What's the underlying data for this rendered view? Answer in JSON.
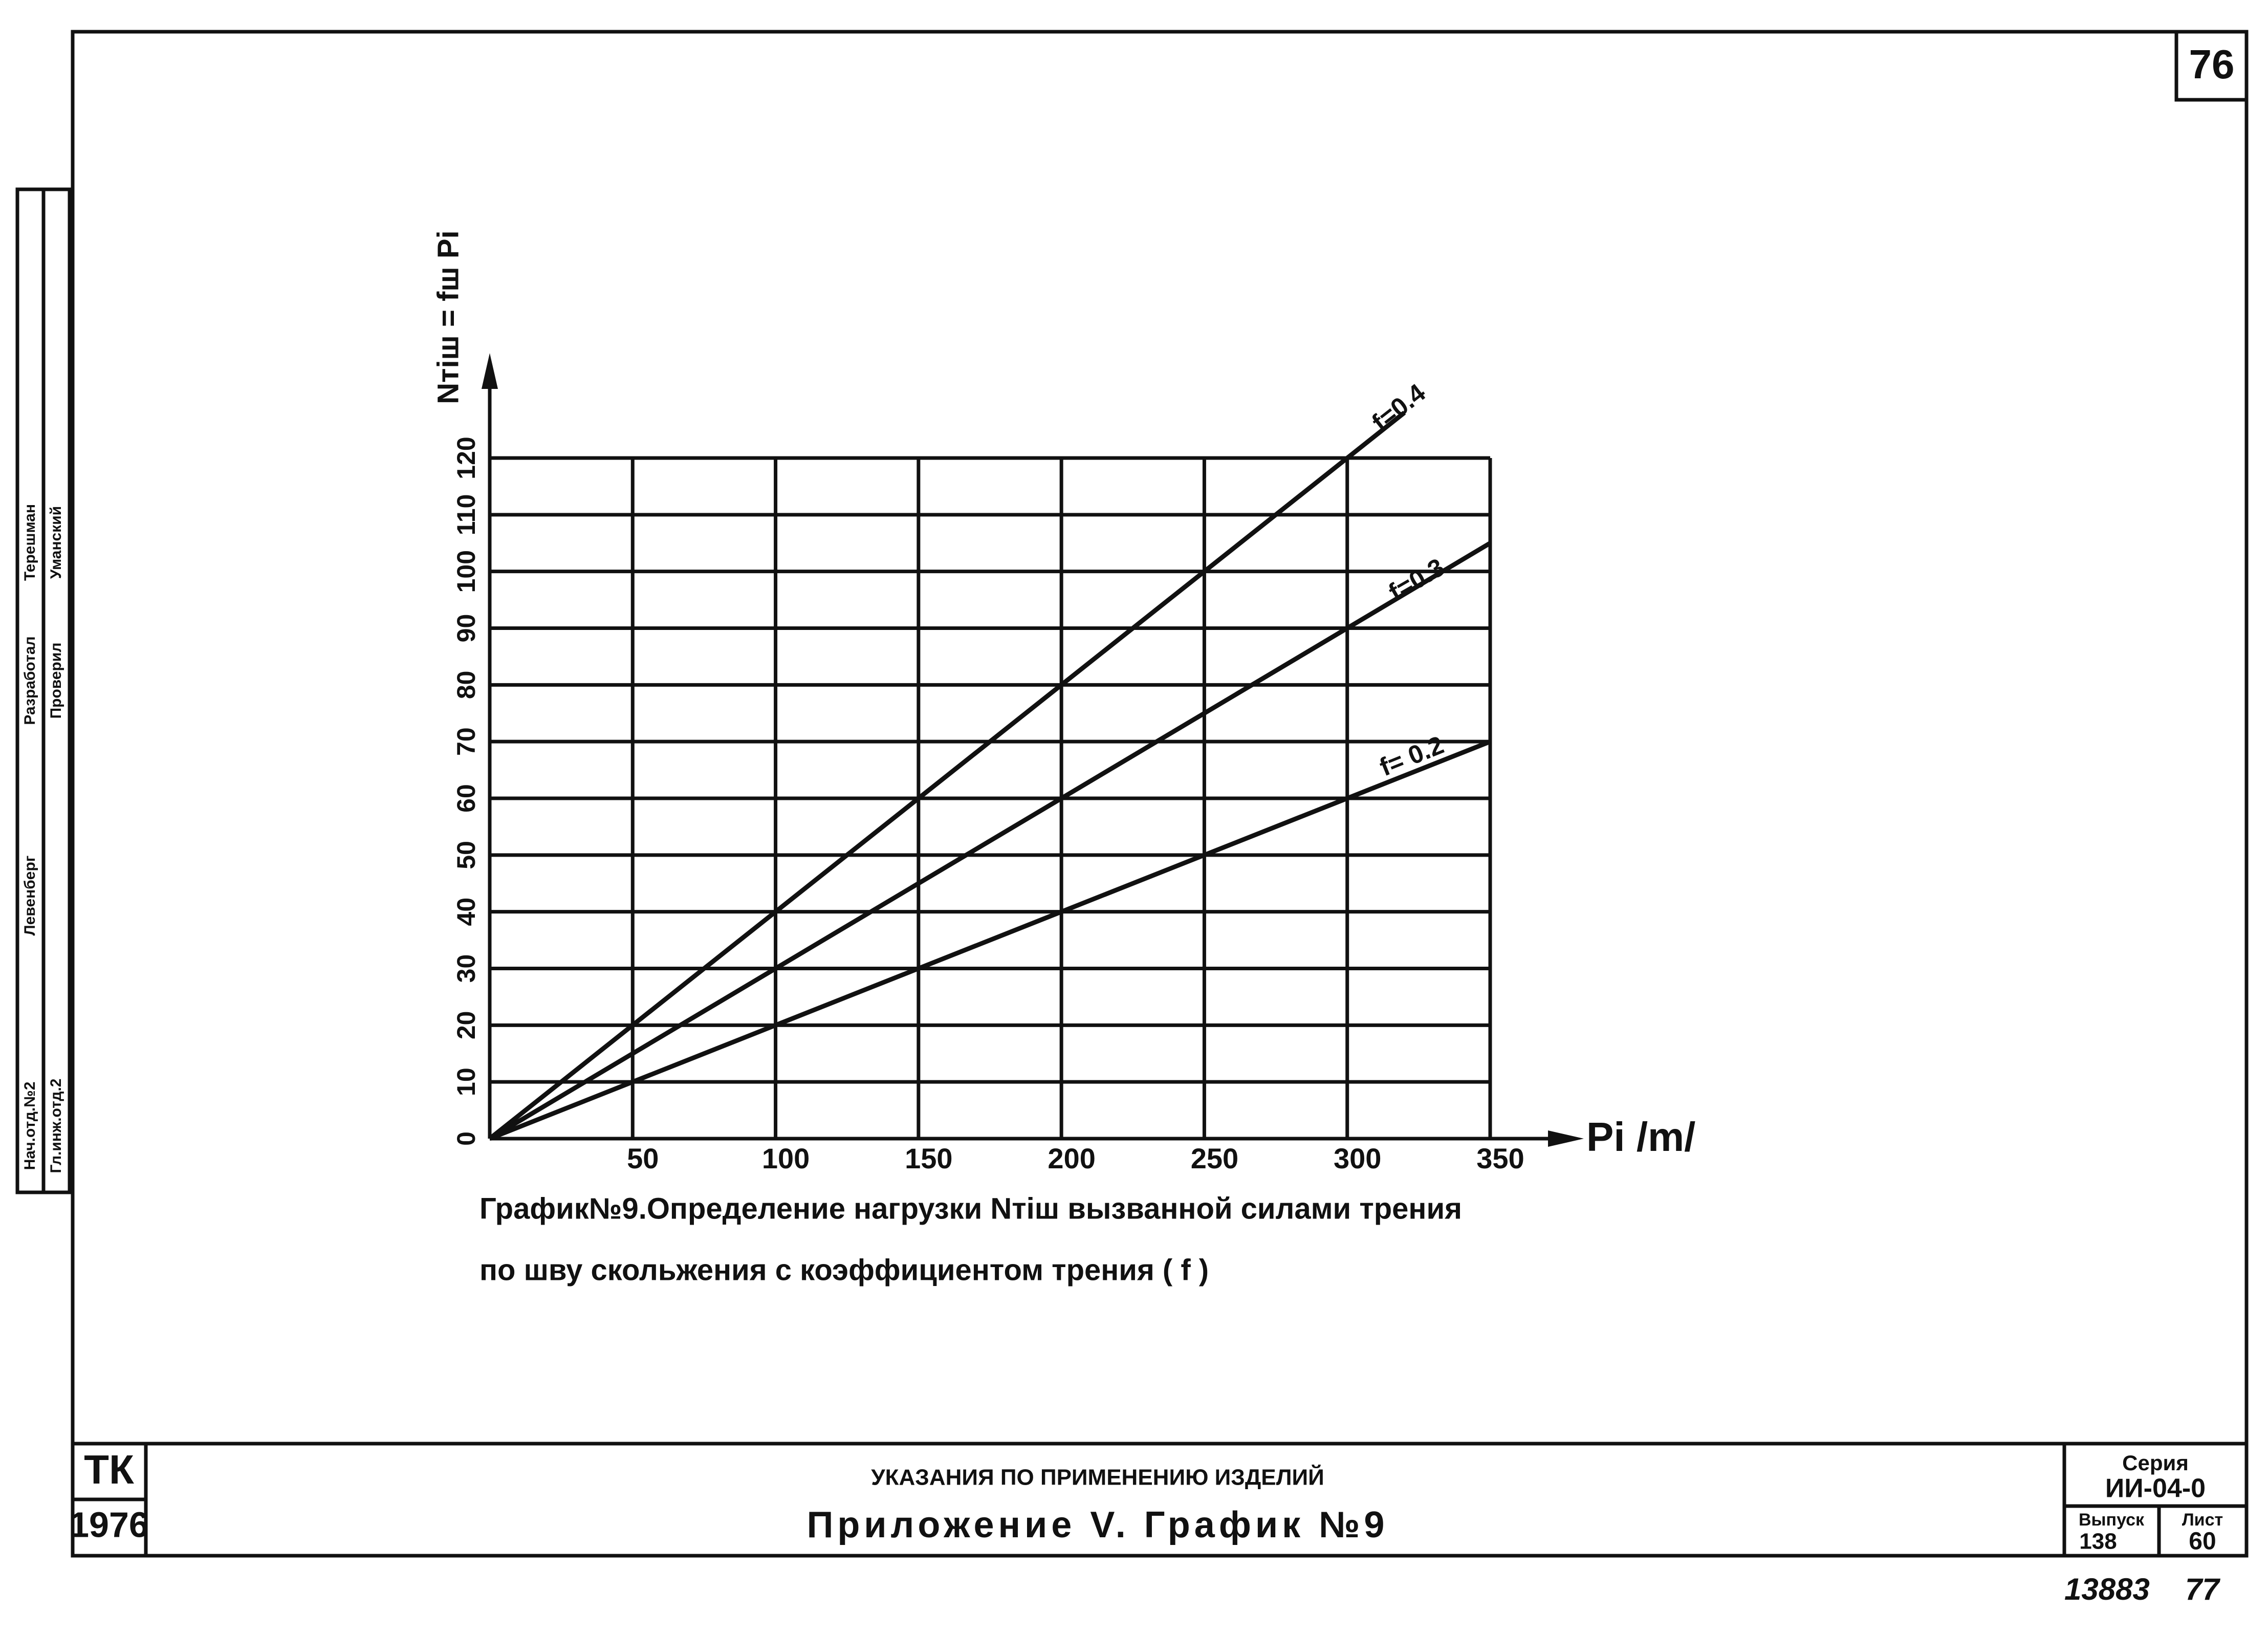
{
  "page_number": "76",
  "chart_data": {
    "type": "line",
    "y_axis_label": "Nтiш = fш Pi",
    "x_axis_label": "Pi /m/",
    "xlim": [
      0,
      350
    ],
    "xticks": [
      50,
      100,
      150,
      200,
      250,
      300,
      350
    ],
    "ylim": [
      0,
      120
    ],
    "yticks": [
      0,
      10,
      20,
      30,
      40,
      50,
      60,
      70,
      80,
      90,
      100,
      110,
      120
    ],
    "grid": true,
    "series": [
      {
        "name": "f=0.4",
        "color": "#111111",
        "x": [
          0,
          320
        ],
        "values": [
          0,
          128
        ]
      },
      {
        "name": "f=0.3",
        "color": "#111111",
        "x": [
          0,
          350
        ],
        "values": [
          0,
          105
        ]
      },
      {
        "name": "f= 0.2",
        "color": "#111111",
        "x": [
          0,
          350
        ],
        "values": [
          0,
          70
        ]
      }
    ],
    "caption": [
      "График№9.Определение нагрузки Nтiш вызванной силами трения",
      "по шву скольжения с коэффициентом трения ( f )"
    ]
  },
  "stamp": {
    "rows": [
      [
        "Нач.отд.№2",
        "Левенберг",
        "Разработал",
        "Терешман"
      ],
      [
        "Гл.инж.отд.2",
        "",
        "Проверил",
        "Уманский"
      ]
    ]
  },
  "title_block": {
    "org": "ТК",
    "year": "1976",
    "subtitle": "УКАЗАНИЯ ПО ПРИМЕНЕНИЮ ИЗДЕЛИЙ",
    "title": "Приложение V. График №9",
    "series_label": "Серия",
    "series_value": "ИИ-04-0",
    "issue_label": "Выпуск",
    "issue_value": "138",
    "sheet_label": "Лист",
    "sheet_value": "60"
  },
  "footer": {
    "code": "13883",
    "page": "77"
  }
}
